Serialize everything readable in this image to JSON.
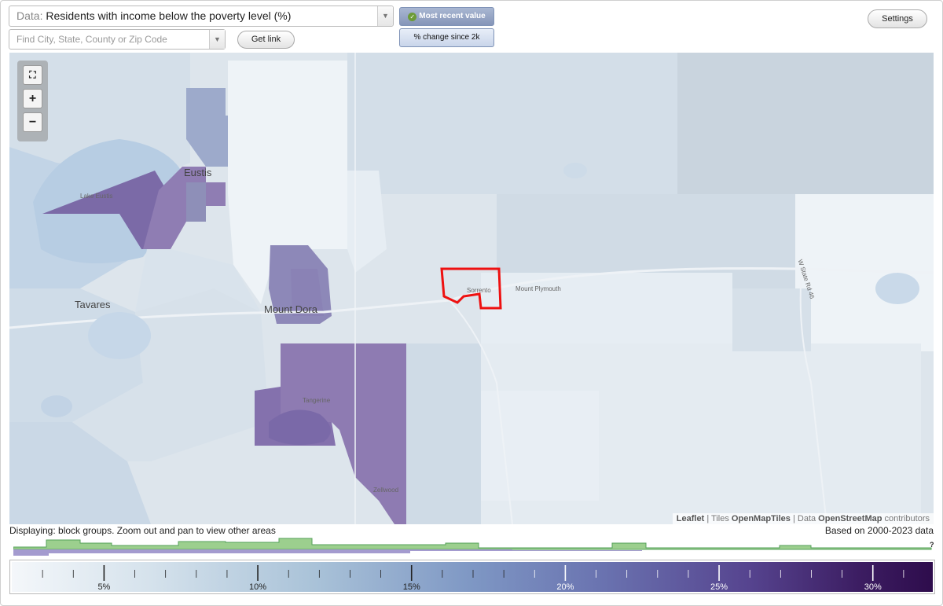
{
  "toolbar": {
    "data_prefix": "Data:",
    "data_value": "Residents with income below the poverty level (%)",
    "search_placeholder": "Find City, State, County or Zip Code",
    "get_link_label": "Get link",
    "most_recent_label": "Most recent value",
    "change_label": "% change since 2k",
    "settings_label": "Settings"
  },
  "map": {
    "labels": {
      "lake_eustis": "Lake Eustis",
      "eustis": "Eustis",
      "tavares": "Tavares",
      "mount_dora": "Mount Dora",
      "sorrento": "Sorrento",
      "mount_plymouth": "Mount Plymouth",
      "tangerine": "Tangerine",
      "zellwood": "Zellwood",
      "road": "W State Rd 46"
    },
    "attribution": {
      "leaflet": "Leaflet",
      "sep1": " | Tiles ",
      "tiles": "OpenMapTiles",
      "sep2": " | Data ",
      "data": "OpenStreetMap",
      "contributors": " contributors"
    }
  },
  "footer": {
    "displaying": "Displaying: block groups. Zoom out and pan to view other areas",
    "based_on": "Based on 2000-2023 data",
    "question_mark": "?"
  },
  "legend": {
    "ticks": [
      "5%",
      "10%",
      "15%",
      "20%",
      "25%",
      "30%"
    ],
    "tick_values": [
      5,
      10,
      15,
      20,
      25,
      30
    ],
    "range": [
      2,
      32
    ]
  },
  "colors": {
    "selected_outline": "#ee1111",
    "histogram_green": "#9ccf8e",
    "histogram_purple": "#a49bcf"
  }
}
